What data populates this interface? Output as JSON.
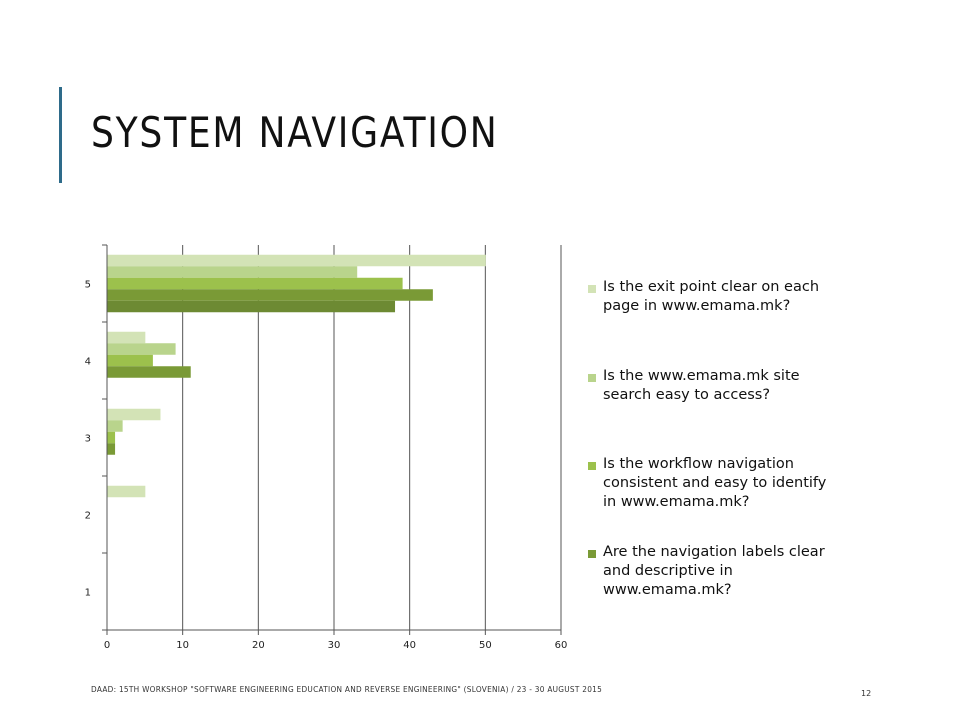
{
  "slide": {
    "title": "SYSTEM NAVIGATION",
    "footer": "DAAD: 15TH WORKSHOP \"SOFTWARE ENGINEERING EDUCATION AND REVERSE ENGINEERING\" (SLOVENIA) / 23 - 30 AUGUST 2015",
    "page_number": "12",
    "accent_color": "#2e6b8a"
  },
  "chart_data": {
    "type": "bar",
    "orientation": "horizontal",
    "categories": [
      "1",
      "2",
      "3",
      "4",
      "5"
    ],
    "xlim": [
      0,
      60
    ],
    "xticks": [
      "0",
      "10",
      "20",
      "30",
      "40",
      "50",
      "60"
    ],
    "grid": "vertical",
    "legend_position": "right",
    "series": [
      {
        "name": "Is the exit point clear on each page in www.emama.mk?",
        "color": "#d3e3b6",
        "values": [
          0,
          5,
          7,
          5,
          50
        ]
      },
      {
        "name": "Is the www.emama.mk site search easy to access?",
        "color": "#b9d48c",
        "values": [
          0,
          0,
          2,
          9,
          33
        ]
      },
      {
        "name": "Is the workflow navigation consistent and easy to identify in www.emama.mk?",
        "color": "#9cc14c",
        "values": [
          0,
          0,
          1,
          6,
          39
        ]
      },
      {
        "name": "Are the navigation labels clear and descriptive in www.emama.mk?",
        "color": "#7a9a36",
        "values": [
          0,
          0,
          1,
          11,
          43
        ]
      },
      {
        "name": "",
        "color": "#6d8a33",
        "values": [
          0,
          0,
          0,
          0,
          38
        ]
      }
    ]
  }
}
